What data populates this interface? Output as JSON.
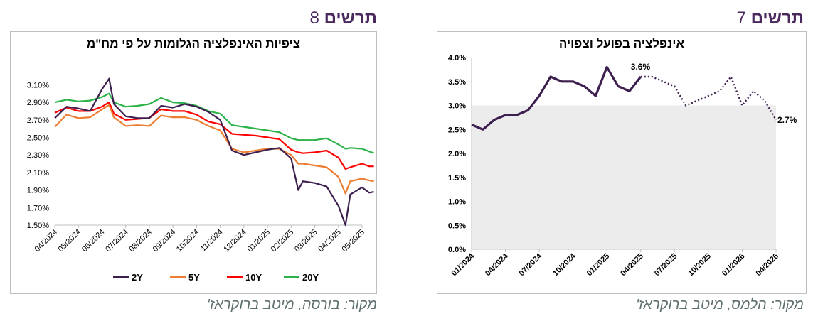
{
  "figures": [
    {
      "heading_word": "תרשים",
      "heading_number": "8",
      "source": "מקור: בורסה, מיטב ברוקראז'",
      "chart_data": {
        "type": "line",
        "title": "ציפיות האינפלציה  הגלומות על פי מח\"מ",
        "xlabel": "",
        "ylabel": "",
        "ylim": [
          1.5,
          3.2
        ],
        "y_ticks": [
          "3.10%",
          "2.90%",
          "2.70%",
          "2.50%",
          "2.30%",
          "2.10%",
          "1.90%",
          "1.70%",
          "1.50%"
        ],
        "x_ticks": [
          "04/2024",
          "05/2024",
          "06/2024",
          "07/2024",
          "08/2024",
          "09/2024",
          "10/2024",
          "11/2024",
          "12/2024",
          "01/2025",
          "02/2025",
          "03/2025",
          "04/2025",
          "05/2025"
        ],
        "legend_position": "bottom",
        "grid": false,
        "x_index": [
          0,
          0.5,
          1,
          1.5,
          2,
          2.3,
          2.5,
          3,
          3.5,
          4,
          4.5,
          5,
          5.5,
          6,
          6.5,
          7,
          7.5,
          8,
          8.5,
          9,
          9.5,
          10,
          10.3,
          10.5,
          11,
          11.5,
          12,
          12.3,
          12.5,
          13,
          13.3,
          13.5
        ],
        "series": [
          {
            "name": "2Y",
            "color": "#3d1f4f",
            "values": [
              2.72,
              2.85,
              2.83,
              2.8,
              3.05,
              3.17,
              2.88,
              2.74,
              2.72,
              2.72,
              2.86,
              2.84,
              2.88,
              2.85,
              2.79,
              2.7,
              2.35,
              2.3,
              2.33,
              2.36,
              2.38,
              2.26,
              1.9,
              2.0,
              1.98,
              1.94,
              1.72,
              1.5,
              1.85,
              1.93,
              1.87,
              1.88
            ]
          },
          {
            "name": "5Y",
            "color": "#ed7d31",
            "values": [
              2.62,
              2.76,
              2.72,
              2.73,
              2.82,
              2.87,
              2.73,
              2.63,
              2.64,
              2.63,
              2.75,
              2.73,
              2.73,
              2.7,
              2.63,
              2.58,
              2.37,
              2.33,
              2.35,
              2.37,
              2.37,
              2.3,
              2.2,
              2.2,
              2.18,
              2.16,
              2.05,
              1.86,
              2.0,
              2.03,
              2.01,
              2.0
            ]
          },
          {
            "name": "10Y",
            "color": "#ff0000",
            "values": [
              2.78,
              2.84,
              2.8,
              2.8,
              2.85,
              2.9,
              2.77,
              2.7,
              2.71,
              2.72,
              2.82,
              2.8,
              2.8,
              2.76,
              2.68,
              2.65,
              2.54,
              2.53,
              2.52,
              2.5,
              2.48,
              2.36,
              2.33,
              2.32,
              2.33,
              2.35,
              2.27,
              2.14,
              2.16,
              2.2,
              2.17,
              2.17
            ]
          },
          {
            "name": "20Y",
            "color": "#2db34a",
            "values": [
              2.9,
              2.93,
              2.91,
              2.92,
              2.96,
              3.0,
              2.9,
              2.85,
              2.86,
              2.88,
              2.95,
              2.9,
              2.89,
              2.86,
              2.8,
              2.77,
              2.64,
              2.62,
              2.6,
              2.58,
              2.56,
              2.49,
              2.47,
              2.47,
              2.47,
              2.49,
              2.42,
              2.37,
              2.38,
              2.37,
              2.34,
              2.32
            ]
          }
        ]
      }
    },
    {
      "heading_word": "תרשים",
      "heading_number": "7",
      "source": "מקור: הלמס, מיטב ברוקראז'",
      "chart_data": {
        "type": "line",
        "title": "אינפלציה בפועל וצפויה",
        "xlabel": "",
        "ylabel": "",
        "ylim": [
          0,
          4.0
        ],
        "y_ticks": [
          "4.0%",
          "3.5%",
          "3.0%",
          "2.5%",
          "2.0%",
          "1.5%",
          "1.0%",
          "0.5%",
          "0.0%"
        ],
        "x_ticks": [
          "01/2024",
          "04/2024",
          "07/2024",
          "10/2024",
          "01/2025",
          "04/2025",
          "07/2025",
          "10/2025",
          "01/2026",
          "04/2026"
        ],
        "legend_position": "none",
        "grid": false,
        "band": {
          "from": 0,
          "to": 3.0,
          "color": "#ececec"
        },
        "actual": {
          "months": [
            "01/2024",
            "02/2024",
            "03/2024",
            "04/2024",
            "05/2024",
            "06/2024",
            "07/2024",
            "08/2024",
            "09/2024",
            "10/2024",
            "11/2024",
            "12/2024",
            "01/2025",
            "02/2025",
            "03/2025",
            "04/2025"
          ],
          "values": [
            2.6,
            2.5,
            2.7,
            2.8,
            2.8,
            2.9,
            3.2,
            3.6,
            3.5,
            3.5,
            3.4,
            3.2,
            3.8,
            3.4,
            3.3,
            3.6
          ]
        },
        "forecast": {
          "months": [
            "04/2025",
            "05/2025",
            "06/2025",
            "07/2025",
            "08/2025",
            "09/2025",
            "10/2025",
            "11/2025",
            "12/2025",
            "01/2026",
            "02/2026",
            "03/2026",
            "04/2026"
          ],
          "values": [
            3.6,
            3.6,
            3.5,
            3.4,
            3.0,
            3.1,
            3.2,
            3.3,
            3.6,
            3.0,
            3.3,
            3.1,
            2.7
          ]
        },
        "data_labels": [
          "3.6%",
          "2.7%"
        ]
      }
    }
  ]
}
